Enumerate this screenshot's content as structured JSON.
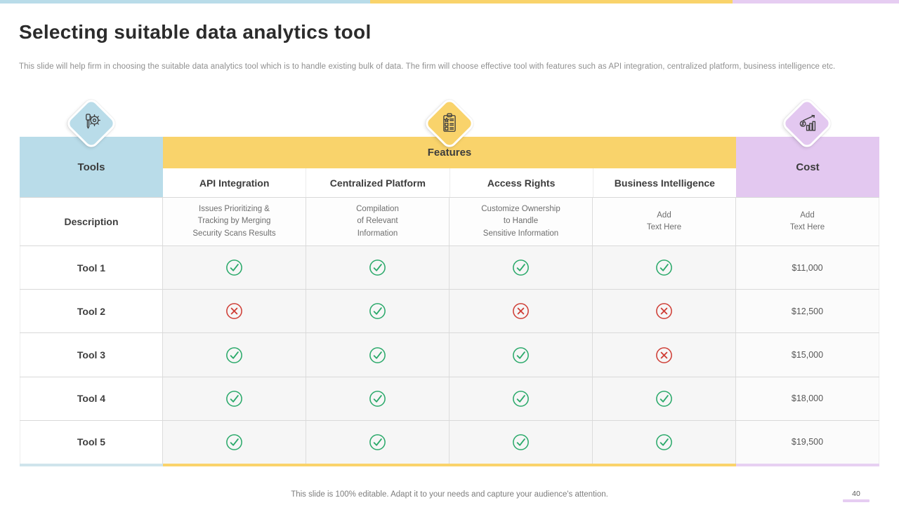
{
  "accent_colors": {
    "blue": "#b9dce9",
    "yellow": "#f9d36b",
    "lavender": "#e3c8f0",
    "check_green": "#2aa96a",
    "cross_red": "#cf3e36"
  },
  "header": {
    "title": "Selecting suitable data analytics tool",
    "subtitle": "This slide will help firm in choosing the suitable data analytics tool which is to handle existing bulk of data. The firm will choose effective tool with features such as API integration, centralized platform, business intelligence etc."
  },
  "icons": {
    "tools": "screwdriver-gear-icon",
    "features": "checklist-clipboard-icon",
    "cost": "growth-bars-coin-icon"
  },
  "table": {
    "tools_header": "Tools",
    "features_header": "Features",
    "cost_header": "Cost",
    "feature_columns": [
      "API Integration",
      "Centralized Platform",
      "Access Rights",
      "Business Intelligence"
    ],
    "description_row": {
      "label": "Description",
      "cells": [
        "Issues Prioritizing &\nTracking by Merging\nSecurity Scans Results",
        "Compilation\nof Relevant\nInformation",
        "Customize Ownership\nto Handle\nSensitive Information",
        "Add\nText Here",
        "Add\nText Here"
      ]
    },
    "rows": [
      {
        "label": "Tool 1",
        "features": [
          true,
          true,
          true,
          true
        ],
        "cost": "$11,000"
      },
      {
        "label": "Tool 2",
        "features": [
          false,
          true,
          false,
          false
        ],
        "cost": "$12,500"
      },
      {
        "label": "Tool 3",
        "features": [
          true,
          true,
          true,
          false
        ],
        "cost": "$15,000"
      },
      {
        "label": "Tool 4",
        "features": [
          true,
          true,
          true,
          true
        ],
        "cost": "$18,000"
      },
      {
        "label": "Tool 5",
        "features": [
          true,
          true,
          true,
          true
        ],
        "cost": "$19,500"
      }
    ]
  },
  "footer": {
    "note": "This slide is 100% editable. Adapt it to your needs and capture your audience's attention.",
    "page_number": "40"
  }
}
